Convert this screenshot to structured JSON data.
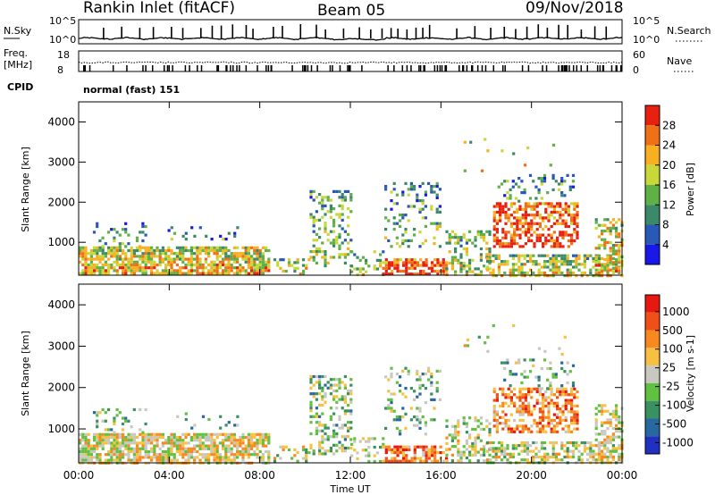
{
  "header": {
    "radar": "Rankin Inlet (fitACF)",
    "beam": "Beam 05",
    "date": "09/Nov/2018"
  },
  "noise_panel": {
    "left_label": "N.Sky",
    "right_label": "N.Search",
    "left_ticks": [
      "10^5",
      "10^0"
    ],
    "right_ticks": [
      "10^5",
      "10^0"
    ]
  },
  "freq_panel": {
    "left_label_1": "Freq.",
    "left_label_2": "[MHz]",
    "right_label": "Nave",
    "left_ticks": [
      "18",
      "8"
    ],
    "right_ticks": [
      "60",
      "0"
    ]
  },
  "cpid": {
    "label": "CPID",
    "value": "normal (fast) 151"
  },
  "time_axis": {
    "label": "Time UT",
    "ticks": [
      "00:00",
      "04:00",
      "08:00",
      "12:00",
      "16:00",
      "20:00",
      "00:00"
    ]
  },
  "chart_data": [
    {
      "type": "heatmap",
      "name": "power",
      "ylabel": "Slant Range [km]",
      "yticks": [
        "1000",
        "2000",
        "3000",
        "4000"
      ],
      "xticks": [
        "00:00",
        "04:00",
        "08:00",
        "12:00",
        "16:00",
        "20:00",
        "00:00"
      ],
      "xlabel": "",
      "colorbar_label": "Power [dB]",
      "colorbar_ticks": [
        "4",
        "8",
        "12",
        "16",
        "20",
        "24",
        "28"
      ],
      "colorbar_colors": [
        "#1818e8",
        "#2858b8",
        "#3a8a6a",
        "#60b048",
        "#c8d838",
        "#f8b020",
        "#f07018",
        "#e82010"
      ],
      "ylim": [
        180,
        4500
      ],
      "xlim_hours": [
        0,
        24
      ]
    },
    {
      "type": "heatmap",
      "name": "velocity",
      "ylabel": "Slant Range [km]",
      "yticks": [
        "1000",
        "2000",
        "3000",
        "4000"
      ],
      "xticks": [
        "00:00",
        "04:00",
        "08:00",
        "12:00",
        "16:00",
        "20:00",
        "00:00"
      ],
      "xlabel": "Time UT",
      "colorbar_label": "Velocity [m s-1]",
      "colorbar_ticks": [
        "1000",
        "500",
        "100",
        "25",
        "-25",
        "-100",
        "-500",
        "-1000"
      ],
      "colorbar_colors": [
        "#2030c0",
        "#2868a0",
        "#3a9060",
        "#60c040",
        "#c8c8c0",
        "#f8c040",
        "#f88820",
        "#f05018",
        "#e81810"
      ],
      "ylim": [
        180,
        4500
      ],
      "xlim_hours": [
        0,
        24
      ]
    }
  ]
}
